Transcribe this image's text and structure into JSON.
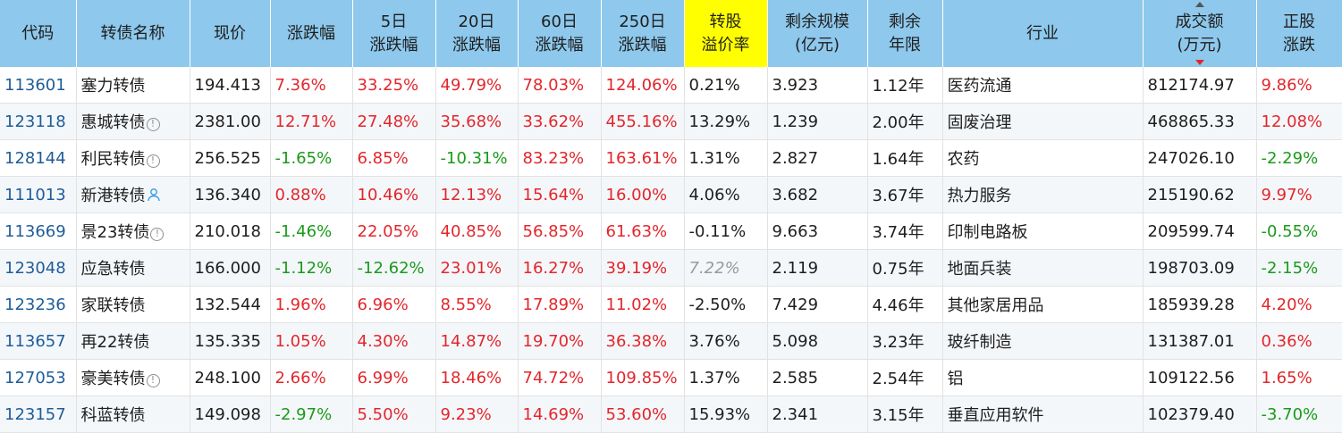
{
  "columns": [
    {
      "key": "code",
      "label": "代码"
    },
    {
      "key": "name",
      "label": "转债名称"
    },
    {
      "key": "price",
      "label": "现价"
    },
    {
      "key": "chg",
      "label": "涨跌幅"
    },
    {
      "key": "chg5",
      "label": "5日\n涨跌幅"
    },
    {
      "key": "chg20",
      "label": "20日\n涨跌幅"
    },
    {
      "key": "chg60",
      "label": "60日\n涨跌幅"
    },
    {
      "key": "chg250",
      "label": "250日\n涨跌幅"
    },
    {
      "key": "premium",
      "label": "转股\n溢价率",
      "highlight": true
    },
    {
      "key": "scale",
      "label": "剩余规模\n(亿元)"
    },
    {
      "key": "years",
      "label": "剩余\n年限"
    },
    {
      "key": "industry",
      "label": "行业"
    },
    {
      "key": "turnover",
      "label": "成交额\n(万元)",
      "sorted": "desc"
    },
    {
      "key": "stock_chg",
      "label": "正股\n涨跌"
    }
  ],
  "colors": {
    "up": "#e3262b",
    "down": "#1a9a1a",
    "header_bg": "#8ec8ec",
    "highlight_bg": "#ffff00",
    "code": "#1f5c99"
  },
  "rows": [
    {
      "code": "113601",
      "name": "塞力转债",
      "icon": "",
      "price": "194.413",
      "chg": "7.36%",
      "chg5": "33.25%",
      "chg20": "49.79%",
      "chg60": "78.03%",
      "chg250": "124.06%",
      "premium": "0.21%",
      "scale": "3.923",
      "years": "1.12年",
      "industry": "医药流通",
      "turnover": "812174.97",
      "stock_chg": "9.86%"
    },
    {
      "code": "123118",
      "name": "惠城转债",
      "icon": "info-icon",
      "price": "2381.00",
      "chg": "12.71%",
      "chg5": "27.48%",
      "chg20": "35.68%",
      "chg60": "33.62%",
      "chg250": "455.16%",
      "premium": "13.29%",
      "scale": "1.239",
      "years": "2.00年",
      "industry": "固废治理",
      "turnover": "468865.33",
      "stock_chg": "12.08%"
    },
    {
      "code": "128144",
      "name": "利民转债",
      "icon": "info-icon",
      "price": "256.525",
      "chg": "-1.65%",
      "chg5": "6.85%",
      "chg20": "-10.31%",
      "chg60": "83.23%",
      "chg250": "163.61%",
      "premium": "1.31%",
      "scale": "2.827",
      "years": "1.64年",
      "industry": "农药",
      "turnover": "247026.10",
      "stock_chg": "-2.29%"
    },
    {
      "code": "111013",
      "name": "新港转债",
      "icon": "user-icon",
      "price": "136.340",
      "chg": "0.88%",
      "chg5": "10.46%",
      "chg20": "12.13%",
      "chg60": "15.64%",
      "chg250": "16.00%",
      "premium": "4.06%",
      "scale": "3.682",
      "years": "3.67年",
      "industry": "热力服务",
      "turnover": "215190.62",
      "stock_chg": "9.97%"
    },
    {
      "code": "113669",
      "name": "景23转债",
      "icon": "info-icon",
      "price": "210.018",
      "chg": "-1.46%",
      "chg5": "22.05%",
      "chg20": "40.85%",
      "chg60": "56.85%",
      "chg250": "61.63%",
      "premium": "-0.11%",
      "scale": "9.663",
      "years": "3.74年",
      "industry": "印制电路板",
      "turnover": "209599.74",
      "stock_chg": "-0.55%"
    },
    {
      "code": "123048",
      "name": "应急转债",
      "icon": "",
      "price": "166.000",
      "chg": "-1.12%",
      "chg5": "-12.62%",
      "chg20": "23.01%",
      "chg60": "16.27%",
      "chg250": "39.19%",
      "premium": "7.22%",
      "premium_muted": true,
      "scale": "2.119",
      "years": "0.75年",
      "industry": "地面兵装",
      "turnover": "198703.09",
      "stock_chg": "-2.15%"
    },
    {
      "code": "123236",
      "name": "家联转债",
      "icon": "",
      "price": "132.544",
      "chg": "1.96%",
      "chg5": "6.96%",
      "chg20": "8.55%",
      "chg60": "17.89%",
      "chg250": "11.02%",
      "premium": "-2.50%",
      "scale": "7.429",
      "years": "4.46年",
      "industry": "其他家居用品",
      "turnover": "185939.28",
      "stock_chg": "4.20%"
    },
    {
      "code": "113657",
      "name": "再22转债",
      "icon": "",
      "price": "135.335",
      "chg": "1.05%",
      "chg5": "4.30%",
      "chg20": "14.87%",
      "chg60": "19.70%",
      "chg250": "36.38%",
      "premium": "3.76%",
      "scale": "5.098",
      "years": "3.23年",
      "industry": "玻纤制造",
      "turnover": "131387.01",
      "stock_chg": "0.36%"
    },
    {
      "code": "127053",
      "name": "豪美转债",
      "icon": "info-icon",
      "price": "248.100",
      "chg": "2.66%",
      "chg5": "6.99%",
      "chg20": "18.46%",
      "chg60": "74.72%",
      "chg250": "109.85%",
      "premium": "1.37%",
      "scale": "2.585",
      "years": "2.54年",
      "industry": "铝",
      "turnover": "109122.56",
      "stock_chg": "1.65%"
    },
    {
      "code": "123157",
      "name": "科蓝转债",
      "icon": "",
      "price": "149.098",
      "chg": "-2.97%",
      "chg5": "5.50%",
      "chg20": "9.23%",
      "chg60": "14.69%",
      "chg250": "53.60%",
      "premium": "15.93%",
      "scale": "2.341",
      "years": "3.15年",
      "industry": "垂直应用软件",
      "turnover": "102379.40",
      "stock_chg": "-3.70%"
    }
  ]
}
